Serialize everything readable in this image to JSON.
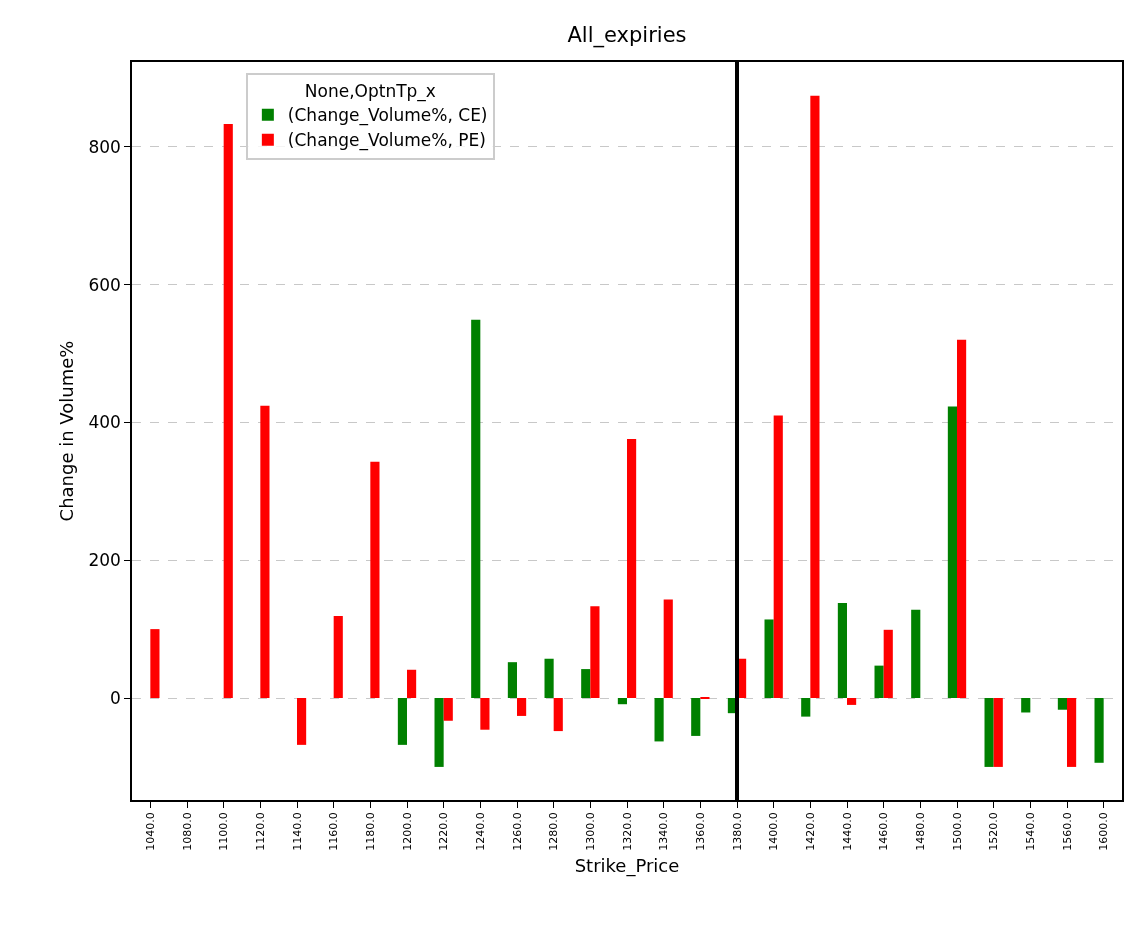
{
  "chart_data": {
    "type": "bar",
    "title": "All_expiries",
    "xlabel": "Strike_Price",
    "ylabel": "Change in Volume%",
    "legend_title": "None,OptnTp_x",
    "categories": [
      "1040.0",
      "1080.0",
      "1100.0",
      "1120.0",
      "1140.0",
      "1160.0",
      "1180.0",
      "1200.0",
      "1220.0",
      "1240.0",
      "1260.0",
      "1280.0",
      "1300.0",
      "1320.0",
      "1340.0",
      "1360.0",
      "1380.0",
      "1400.0",
      "1420.0",
      "1440.0",
      "1460.0",
      "1480.0",
      "1500.0",
      "1520.0",
      "1540.0",
      "1560.0",
      "1600.0"
    ],
    "series": [
      {
        "name": "(Change_Volume%, CE)",
        "color": "#008000",
        "values": [
          null,
          null,
          null,
          null,
          null,
          null,
          null,
          -68,
          -100,
          549,
          52,
          57,
          42,
          -9,
          -63,
          -55,
          -22,
          114,
          -27,
          138,
          47,
          128,
          423,
          -100,
          -21,
          -17,
          -94
        ]
      },
      {
        "name": "(Change_Volume%, PE)",
        "color": "#ff0000",
        "values": [
          100,
          null,
          833,
          424,
          -68,
          119,
          343,
          41,
          -33,
          -46,
          -26,
          -48,
          133,
          376,
          143,
          1,
          57,
          410,
          874,
          -10,
          99,
          null,
          520,
          -100,
          null,
          -100,
          null
        ]
      }
    ],
    "ylim": [
      -148,
      923
    ],
    "yticks": [
      0,
      200,
      400,
      600,
      800
    ],
    "grid": "y",
    "legend": "top left",
    "ref_lines": [
      {
        "axis": "x",
        "value": "1380.0",
        "color": "#000000",
        "line_style": "solid"
      }
    ]
  }
}
